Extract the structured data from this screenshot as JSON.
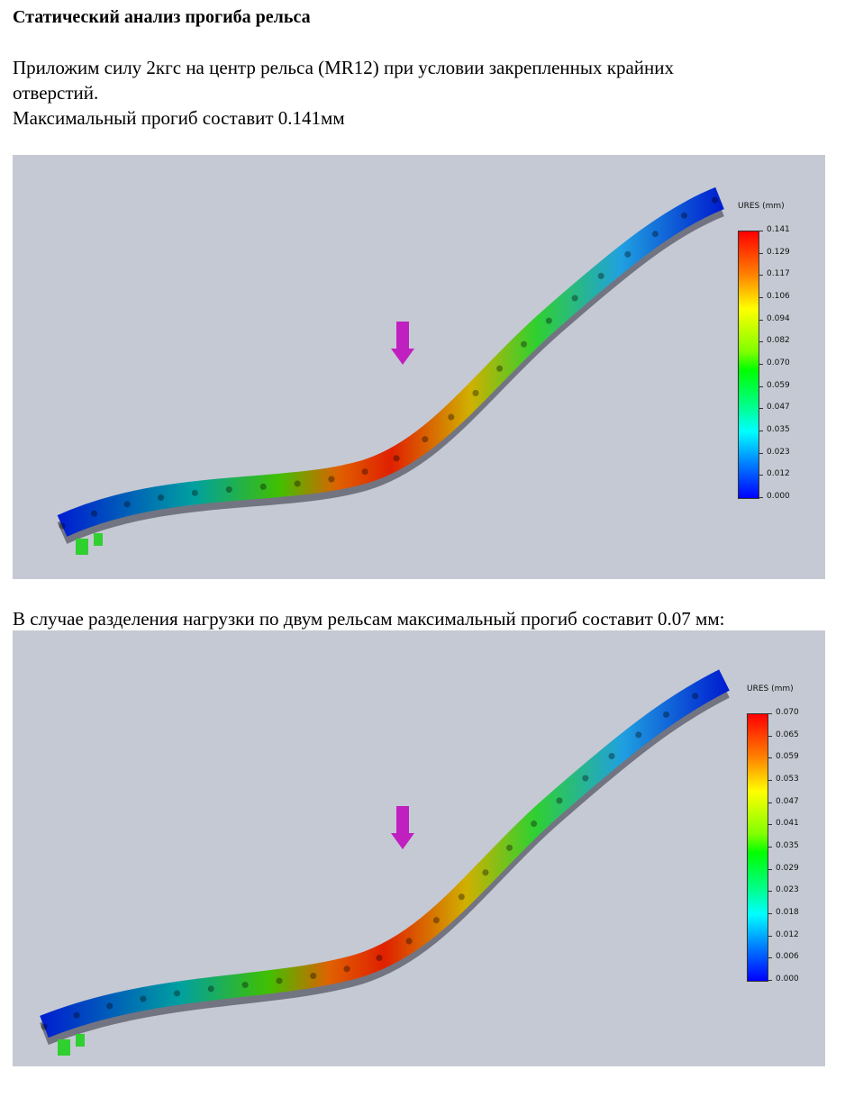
{
  "title": "Статический анализ прогиба рельса",
  "intro_line1": "Приложим силу 2кгс на центр рельса (MR12) при условии закрепленных крайних",
  "intro_line2": "отверстий.",
  "intro_line3": "Максимальный прогиб составит 0.141мм",
  "second_caption": "В случае разделения нагрузки  по двум рельсам максимальный прогиб составит 0.07 мм:",
  "figures": [
    {
      "legend_title": "URES (mm)",
      "max": 0.141,
      "labels": [
        "0.141",
        "0.129",
        "0.117",
        "0.106",
        "0.094",
        "0.082",
        "0.070",
        "0.059",
        "0.047",
        "0.035",
        "0.023",
        "0.012",
        "0.000"
      ]
    },
    {
      "legend_title": "URES (mm)",
      "max": 0.07,
      "labels": [
        "0.070",
        "0.065",
        "0.059",
        "0.053",
        "0.047",
        "0.041",
        "0.035",
        "0.029",
        "0.023",
        "0.018",
        "0.012",
        "0.006",
        "0.000"
      ]
    }
  ],
  "colors": {
    "background": "#c5c9d3",
    "arrow": "#c020c0"
  }
}
